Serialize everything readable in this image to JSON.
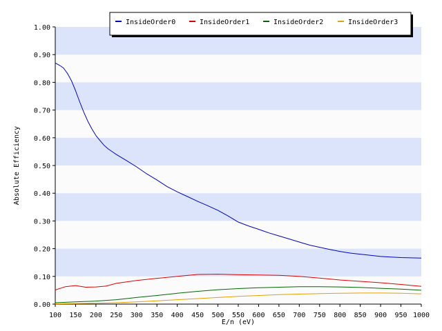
{
  "chart_data": {
    "type": "line",
    "title": "",
    "xlabel": "E/n (eV)",
    "ylabel": "Absolute Efficiency",
    "xlim": [
      100,
      1000
    ],
    "ylim": [
      0,
      1
    ],
    "grid": "alternating horizontal bands",
    "legend_position": "top",
    "band_color": "#dbe4fb",
    "plot_background": "#fbfbfb",
    "x_ticks": [
      "100",
      "150",
      "200",
      "250",
      "300",
      "350",
      "400",
      "450",
      "500",
      "550",
      "600",
      "650",
      "700",
      "750",
      "800",
      "850",
      "900",
      "950",
      "1000"
    ],
    "y_ticks": [
      "0.00",
      "0.10",
      "0.20",
      "0.30",
      "0.40",
      "0.50",
      "0.60",
      "0.70",
      "0.80",
      "0.90",
      "1.00"
    ],
    "series": [
      {
        "name": "InsideOrder0",
        "color": "#0000cc",
        "x": [
          100,
          110,
          120,
          130,
          140,
          150,
          160,
          170,
          180,
          190,
          200,
          210,
          220,
          230,
          240,
          250,
          275,
          300,
          325,
          350,
          375,
          400,
          425,
          450,
          475,
          500,
          525,
          550,
          575,
          600,
          625,
          650,
          675,
          700,
          725,
          750,
          775,
          800,
          825,
          850,
          875,
          900,
          925,
          950,
          975,
          1000
        ],
        "y": [
          0.87,
          0.862,
          0.852,
          0.832,
          0.805,
          0.77,
          0.73,
          0.693,
          0.66,
          0.632,
          0.608,
          0.59,
          0.573,
          0.56,
          0.55,
          0.54,
          0.518,
          0.495,
          0.47,
          0.448,
          0.424,
          0.405,
          0.388,
          0.371,
          0.355,
          0.338,
          0.318,
          0.296,
          0.282,
          0.27,
          0.257,
          0.246,
          0.235,
          0.224,
          0.213,
          0.205,
          0.197,
          0.19,
          0.184,
          0.18,
          0.176,
          0.172,
          0.17,
          0.168,
          0.167,
          0.166
        ]
      },
      {
        "name": "InsideOrder1",
        "color": "#dd0000",
        "x": [
          100,
          125,
          150,
          175,
          200,
          225,
          250,
          300,
          350,
          400,
          450,
          500,
          550,
          600,
          650,
          700,
          750,
          800,
          850,
          900,
          950,
          1000
        ],
        "y": [
          0.051,
          0.063,
          0.067,
          0.061,
          0.062,
          0.065,
          0.075,
          0.085,
          0.093,
          0.1,
          0.107,
          0.108,
          0.106,
          0.105,
          0.104,
          0.1,
          0.094,
          0.087,
          0.082,
          0.077,
          0.071,
          0.064
        ]
      },
      {
        "name": "InsideOrder2",
        "color": "#006600",
        "x": [
          100,
          150,
          200,
          250,
          300,
          350,
          400,
          450,
          500,
          550,
          600,
          650,
          700,
          750,
          800,
          850,
          900,
          950,
          1000
        ],
        "y": [
          0.005,
          0.008,
          0.011,
          0.016,
          0.024,
          0.031,
          0.039,
          0.046,
          0.052,
          0.056,
          0.059,
          0.061,
          0.063,
          0.063,
          0.062,
          0.06,
          0.057,
          0.054,
          0.05
        ]
      },
      {
        "name": "InsideOrder3",
        "color": "#e6a000",
        "x": [
          100,
          150,
          200,
          250,
          300,
          350,
          400,
          450,
          500,
          550,
          600,
          650,
          700,
          750,
          800,
          850,
          900,
          950,
          1000
        ],
        "y": [
          0.001,
          0.002,
          0.003,
          0.005,
          0.008,
          0.012,
          0.016,
          0.02,
          0.024,
          0.028,
          0.031,
          0.034,
          0.036,
          0.038,
          0.039,
          0.04,
          0.04,
          0.039,
          0.037
        ]
      }
    ]
  }
}
